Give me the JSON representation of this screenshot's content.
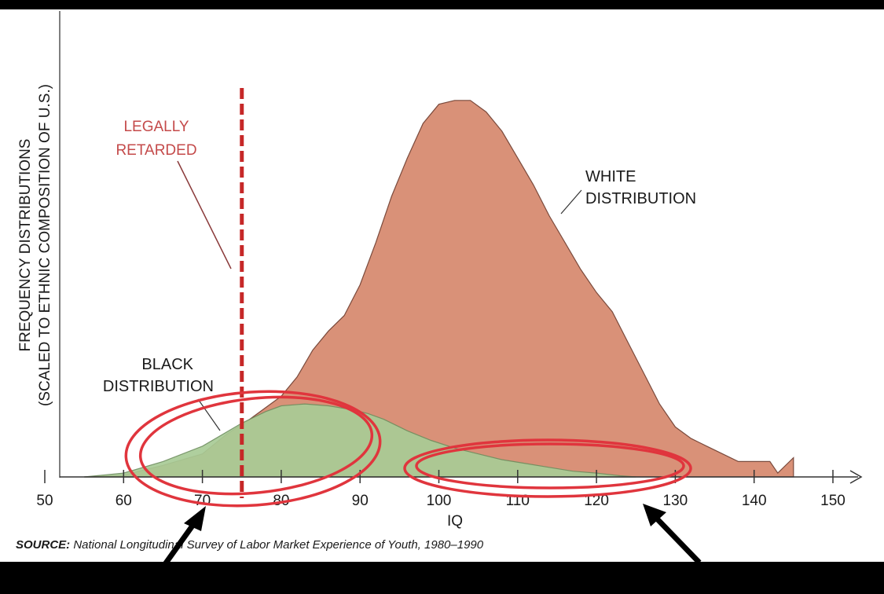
{
  "chart_data": {
    "type": "area",
    "xlabel": "IQ",
    "ylabel_lines": [
      "FREQUENCY DISTRIBUTIONS",
      "(SCALED TO ETHNIC COMPOSITION OF U.S.)"
    ],
    "xlim": [
      50,
      150
    ],
    "xticks": [
      50,
      60,
      70,
      80,
      90,
      100,
      110,
      120,
      130,
      140,
      150
    ],
    "ylim": [
      0,
      100
    ],
    "grid": false,
    "series": [
      {
        "name": "WHITE DISTRIBUTION",
        "label_lines": [
          "WHITE",
          "DISTRIBUTION"
        ],
        "color": "#d99178",
        "x": [
          55,
          60,
          65,
          70,
          73,
          76,
          78,
          80,
          82,
          84,
          86,
          88,
          90,
          92,
          94,
          96,
          98,
          100,
          102,
          104,
          106,
          108,
          110,
          112,
          114,
          116,
          118,
          120,
          122,
          124,
          126,
          128,
          130,
          132,
          134,
          136,
          138,
          140,
          142,
          143,
          145
        ],
        "y": [
          0,
          0.5,
          3,
          6,
          11,
          15,
          18,
          21,
          26,
          33,
          38,
          42,
          50,
          61,
          73,
          83,
          92,
          97,
          98,
          98,
          95,
          90,
          83,
          76,
          68,
          61,
          54,
          48,
          43,
          35,
          27,
          19,
          13,
          10,
          8,
          6,
          4,
          4,
          4,
          1,
          5
        ]
      },
      {
        "name": "BLACK DISTRIBUTION",
        "label_lines": [
          "BLACK",
          "DISTRIBUTION"
        ],
        "color": "#a9cc96",
        "x": [
          55,
          60,
          65,
          70,
          75,
          78,
          80,
          83,
          86,
          89,
          91,
          93,
          96,
          99,
          102,
          105,
          108,
          111,
          114,
          117,
          120,
          123,
          125
        ],
        "y": [
          0,
          1,
          4,
          8,
          14,
          17,
          18.5,
          19,
          18.5,
          17.5,
          16.5,
          15,
          12,
          9.5,
          7.5,
          6,
          4.5,
          3.5,
          2.5,
          1.5,
          1,
          0.3,
          0
        ]
      }
    ],
    "annotations": [
      {
        "text_lines": [
          "LEGALLY",
          "RETARDED"
        ],
        "x": 75,
        "line_style": "dashed",
        "color": "#c62828"
      }
    ],
    "source_label": "SOURCE:",
    "source_text": "National Longitudinal Survey of Labor Market Experience of Youth, 1980–1990",
    "overlay_marks": {
      "color": "#e0353d",
      "arrow_color": "#000000"
    }
  }
}
